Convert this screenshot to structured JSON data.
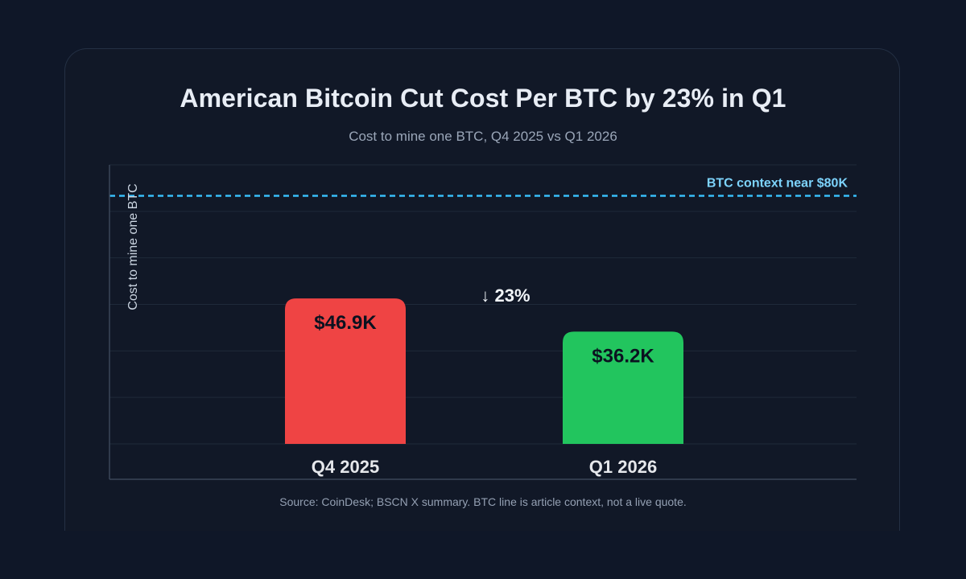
{
  "colors": {
    "background": "#0f1728",
    "card": "#111827",
    "q4_bar": "#ef4444",
    "q1_bar": "#22c55e",
    "reference_line": "#38bdf8"
  },
  "chart_data": {
    "type": "bar",
    "title": "American Bitcoin Cut Cost Per BTC by 23% in Q1",
    "subtitle": "Cost to mine one BTC, Q4 2025 vs Q1 2026",
    "xlabel": "",
    "ylabel": "Cost to mine one BTC",
    "categories": [
      "Q4 2025",
      "Q1 2026"
    ],
    "values": [
      46.9,
      36.2
    ],
    "value_labels": [
      "$46.9K",
      "$36.2K"
    ],
    "unit": "thousand USD",
    "ylim": [
      0,
      90
    ],
    "grid": true,
    "reference_line": {
      "value": 80,
      "label": "BTC context near $80K"
    },
    "annotation": "↓ 23%",
    "source": "Source: CoinDesk; BSCN X summary. BTC line is article context, not a live quote."
  }
}
